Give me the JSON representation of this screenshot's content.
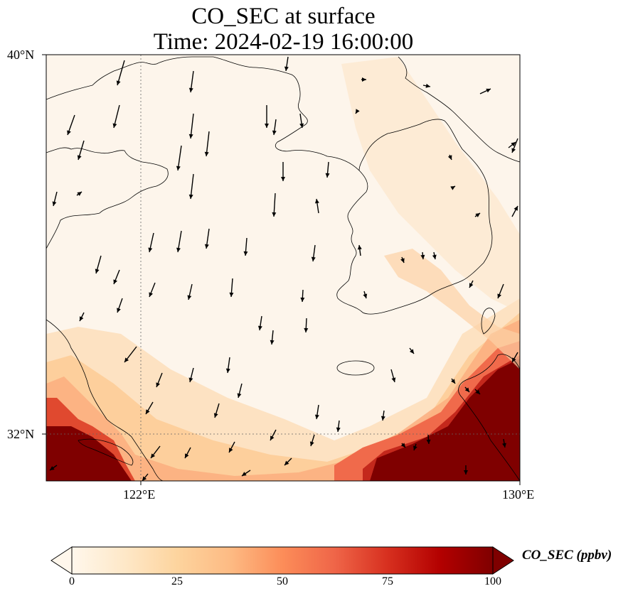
{
  "title_line1": "CO_SEC at surface",
  "title_line2": "Time: 2024-02-19 16:00:00",
  "lat_labels": [
    "40°N",
    "32°N"
  ],
  "lon_labels": [
    "122°E",
    "130°E"
  ],
  "colorbar": {
    "label": "CO_SEC (ppbv)",
    "ticks": [
      "0",
      "25",
      "50",
      "75",
      "100"
    ],
    "tick_values": [
      0,
      25,
      50,
      75,
      100
    ],
    "range": [
      0,
      100
    ],
    "extend": "both",
    "colormap": "OrRd",
    "colors": [
      "#fff7ec",
      "#fee8c8",
      "#fdd49e",
      "#fdbb84",
      "#fc8d59",
      "#ef6548",
      "#d7301f",
      "#b30000",
      "#7f0000"
    ]
  },
  "map": {
    "lon_range": [
      120,
      130
    ],
    "lat_range": [
      31,
      40
    ],
    "gridlines": {
      "lon": [
        122
      ],
      "lat": [
        32
      ]
    },
    "background_color": "#fdf5eb",
    "coastline_color": "#000000",
    "vector_color": "#000000"
  }
}
